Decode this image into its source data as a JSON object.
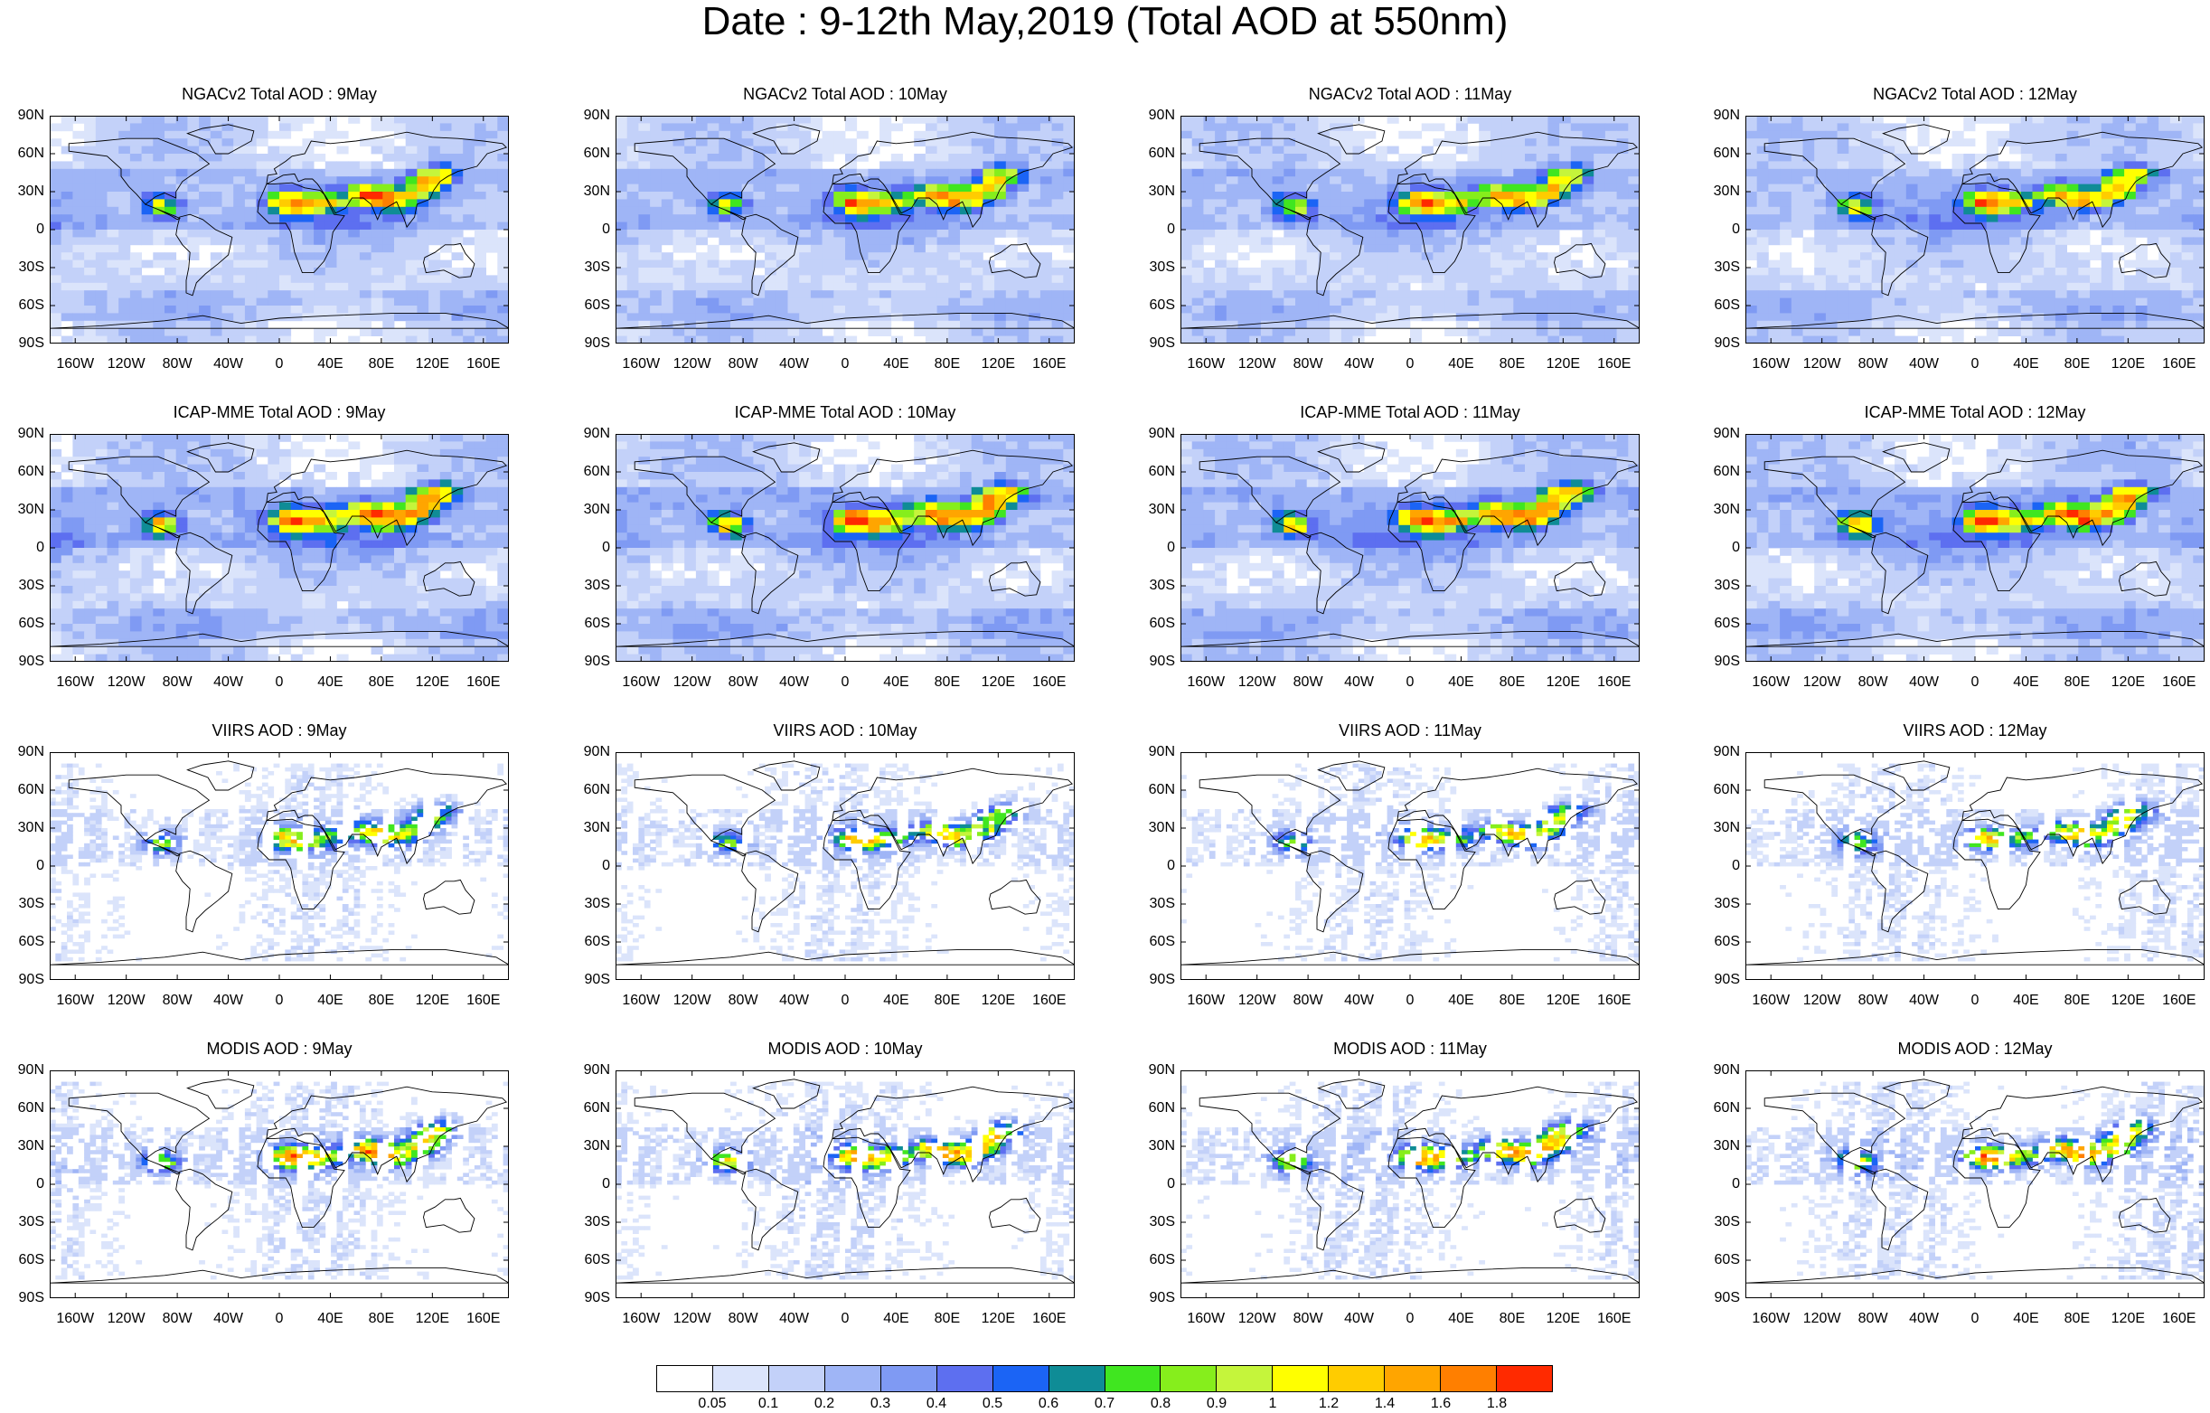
{
  "title": "Date : 9-12th May,2019 (Total AOD at 550nm)",
  "rows": [
    {
      "type": "model",
      "intensity": 1.0,
      "dust": 1.0,
      "panels": [
        "NGACv2 Total AOD : 9May",
        "NGACv2 Total AOD : 10May",
        "NGACv2 Total AOD : 11May",
        "NGACv2 Total AOD : 12May"
      ]
    },
    {
      "type": "model",
      "intensity": 1.1,
      "dust": 1.1,
      "panels": [
        "ICAP-MME Total AOD : 9May",
        "ICAP-MME Total AOD : 10May",
        "ICAP-MME Total AOD : 11May",
        "ICAP-MME Total AOD : 12May"
      ]
    },
    {
      "type": "satellite",
      "intensity": 0.7,
      "dust": 1.2,
      "panels": [
        "VIIRS AOD : 9May",
        "VIIRS AOD : 10May",
        "VIIRS AOD : 11May",
        "VIIRS AOD : 12May"
      ]
    },
    {
      "type": "satellite",
      "intensity": 0.8,
      "dust": 1.3,
      "panels": [
        "MODIS AOD : 9May",
        "MODIS AOD : 10May",
        "MODIS AOD : 11May",
        "MODIS AOD : 12May"
      ]
    }
  ],
  "lat_labels": [
    "90N",
    "60N",
    "30N",
    "0",
    "30S",
    "60S",
    "90S"
  ],
  "lon_labels": [
    "160W",
    "120W",
    "80W",
    "40W",
    "0",
    "40E",
    "80E",
    "120E",
    "160E"
  ],
  "lon_values": [
    -160,
    -120,
    -80,
    -40,
    0,
    40,
    80,
    120,
    160
  ],
  "lat_values": [
    90,
    60,
    30,
    0,
    -30,
    -60,
    -90
  ],
  "colorbar": {
    "colors": [
      "#ffffff",
      "#dbe4fb",
      "#c3d1f9",
      "#9fb5f6",
      "#7f9af3",
      "#5d6ff0",
      "#1b64f5",
      "#0f8c96",
      "#40e620",
      "#86ee1c",
      "#c5f53b",
      "#ffff00",
      "#ffcc00",
      "#ffa500",
      "#ff7f00",
      "#ff2a00"
    ],
    "labels": [
      "0.05",
      "0.1",
      "0.2",
      "0.3",
      "0.4",
      "0.5",
      "0.6",
      "0.7",
      "0.8",
      "0.9",
      "1",
      "1.2",
      "1.4",
      "1.6",
      "1.8"
    ]
  }
}
